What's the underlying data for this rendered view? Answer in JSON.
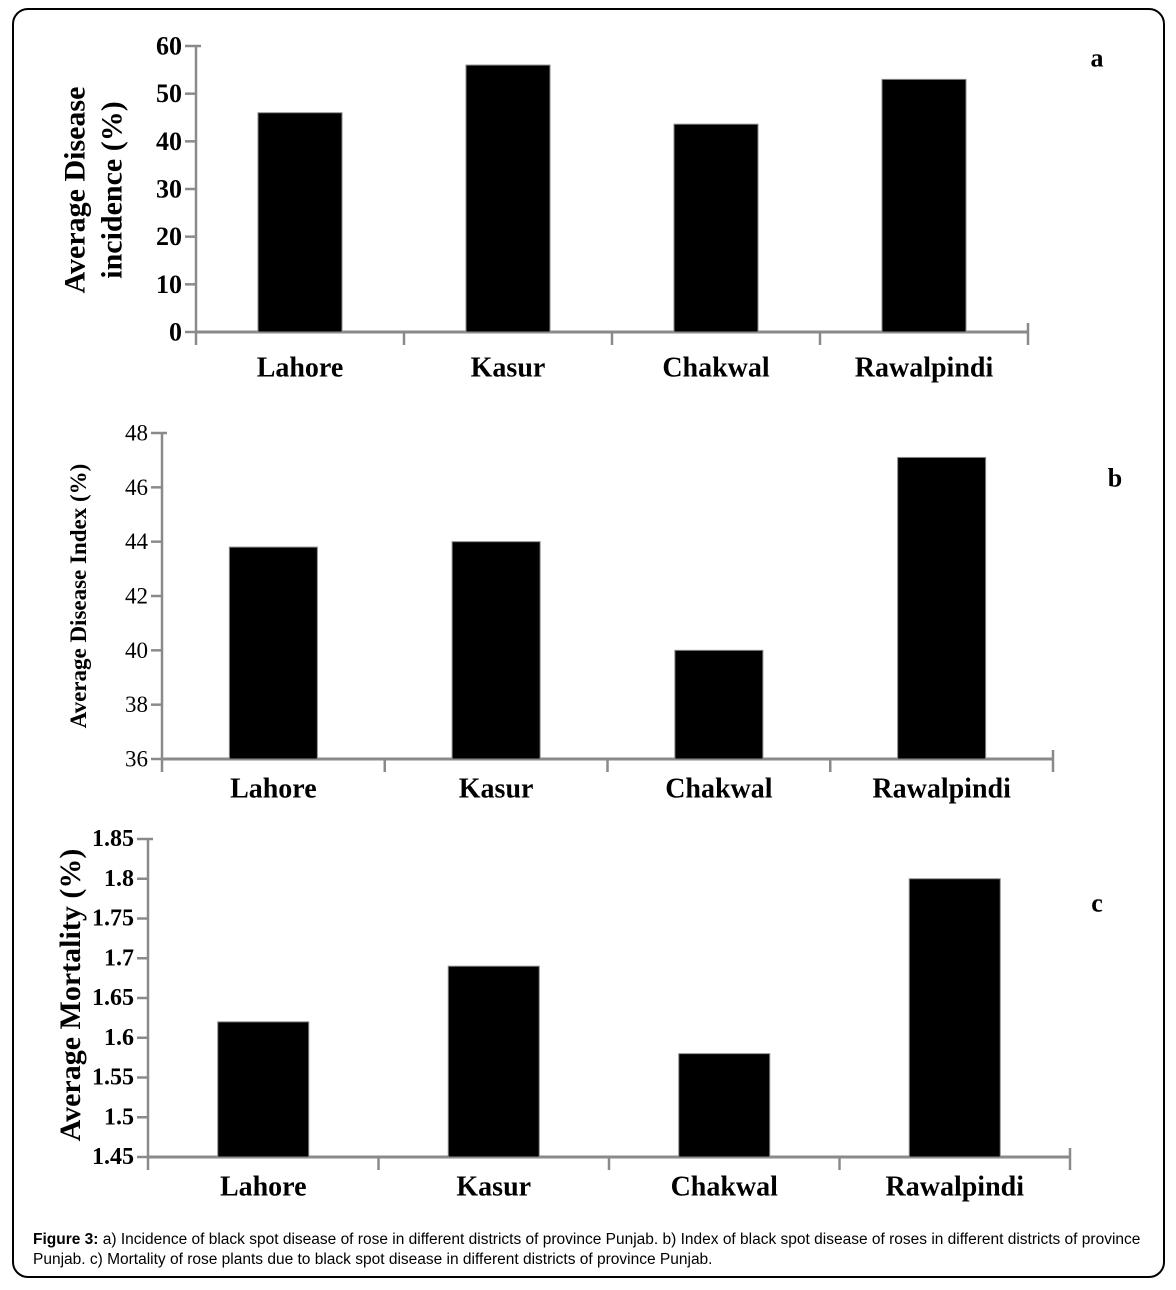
{
  "figure": {
    "caption_prefix": "Figure 3:",
    "caption_body": " a) Incidence of black spot disease of rose in different districts of province Punjab. b) Index of black spot disease of roses in different districts of province Punjab. c)  Mortality of rose plants due to black spot disease in different districts of province Punjab."
  },
  "colors": {
    "bar": "#000000",
    "axis": "#8a8a8a",
    "text": "#000000"
  },
  "chart_data": [
    {
      "type": "bar",
      "panel_label": "a",
      "categories": [
        "Lahore",
        "Kasur",
        "Chakwal",
        "Rawalpindi"
      ],
      "values": [
        46,
        56,
        43.6,
        53
      ],
      "ylabel": "Average Disease incidence (%)",
      "title_rotated_lines": [
        "Average Disease",
        "incidence (%)"
      ],
      "xlabel": "",
      "ylim": [
        0,
        60
      ],
      "ytick_step": 10,
      "ytick_labels": [
        "0",
        "10",
        "20",
        "30",
        "40",
        "50",
        "60"
      ],
      "grid": false,
      "legend": false
    },
    {
      "type": "bar",
      "panel_label": "b",
      "categories": [
        "Lahore",
        "Kasur",
        "Chakwal",
        "Rawalpindi"
      ],
      "values": [
        43.8,
        44,
        40,
        47.1
      ],
      "ylabel": "Average Disease Index (%)",
      "title_rotated_lines": [
        "Average Disease Index (%)"
      ],
      "xlabel": "",
      "ylim": [
        36,
        48
      ],
      "ytick_step": 2,
      "ytick_labels": [
        "36",
        "38",
        "40",
        "42",
        "44",
        "46",
        "48"
      ],
      "grid": false,
      "legend": false
    },
    {
      "type": "bar",
      "panel_label": "c",
      "categories": [
        "Lahore",
        "Kasur",
        "Chakwal",
        "Rawalpindi"
      ],
      "values": [
        1.62,
        1.69,
        1.58,
        1.8
      ],
      "ylabel": "Average Mortality (%)",
      "title_rotated_lines": [
        "Average  Mortality (%)"
      ],
      "xlabel": "",
      "ylim": [
        1.45,
        1.85
      ],
      "ytick_step": 0.05,
      "ytick_labels": [
        "1.45",
        "1.5",
        "1.55",
        "1.6",
        "1.65",
        "1.7",
        "1.75",
        "1.8",
        "1.85"
      ],
      "grid": false,
      "legend": false
    }
  ]
}
